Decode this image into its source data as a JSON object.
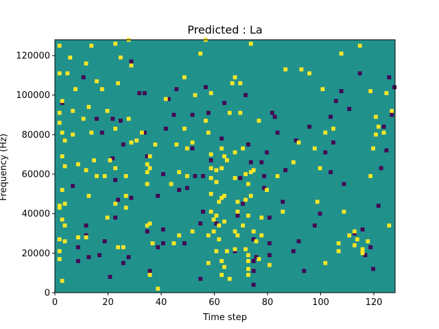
{
  "chart_data": {
    "type": "heatmap",
    "title": "Predicted : La",
    "xlabel": "Time step",
    "ylabel": "Frequency (Hz)",
    "xlim": [
      0,
      128
    ],
    "ylim": [
      0,
      128000
    ],
    "xticks": [
      0,
      20,
      40,
      60,
      80,
      100,
      120
    ],
    "yticks": [
      0,
      20000,
      40000,
      60000,
      80000,
      100000,
      120000
    ],
    "colormap": "viridis",
    "levels": {
      "low": 0,
      "mid": 1,
      "high": 2
    },
    "colors": {
      "low": "#440154",
      "mid": "#21918c",
      "high": "#fde725"
    },
    "background_level": 1,
    "cells_high": [
      [
        1,
        124000
      ],
      [
        1,
        110000
      ],
      [
        1,
        90000
      ],
      [
        1,
        85000
      ],
      [
        1,
        43000
      ],
      [
        1,
        42000
      ],
      [
        1,
        26000
      ],
      [
        1,
        20000
      ],
      [
        1,
        16000
      ],
      [
        2,
        96000
      ],
      [
        2,
        80000
      ],
      [
        2,
        68000
      ],
      [
        2,
        51000
      ],
      [
        2,
        36000
      ],
      [
        2,
        5000
      ],
      [
        3,
        76000
      ],
      [
        3,
        63000
      ],
      [
        3,
        44000
      ],
      [
        3,
        33000
      ],
      [
        3,
        25000
      ],
      [
        4,
        110000
      ],
      [
        5,
        118000
      ],
      [
        6,
        91000
      ],
      [
        6,
        79000
      ],
      [
        7,
        102000
      ],
      [
        8,
        64000
      ],
      [
        8,
        27000
      ],
      [
        10,
        87000
      ],
      [
        11,
        115000
      ],
      [
        11,
        61000
      ],
      [
        11,
        27000
      ],
      [
        12,
        93000
      ],
      [
        12,
        48000
      ],
      [
        13,
        124000
      ],
      [
        13,
        80000
      ],
      [
        14,
        66000
      ],
      [
        15,
        58000
      ],
      [
        15,
        106000
      ],
      [
        17,
        102000
      ],
      [
        18,
        58000
      ],
      [
        19,
        91000
      ],
      [
        19,
        37000
      ],
      [
        20,
        66000
      ],
      [
        22,
        125000
      ],
      [
        22,
        82000
      ],
      [
        22,
        62000
      ],
      [
        22,
        44000
      ],
      [
        23,
        105000
      ],
      [
        23,
        22000
      ],
      [
        24,
        118000
      ],
      [
        25,
        22000
      ],
      [
        26,
        58000
      ],
      [
        26,
        48000
      ],
      [
        26,
        42000
      ],
      [
        27,
        127000
      ],
      [
        27,
        87000
      ],
      [
        28,
        114000
      ],
      [
        28,
        75000
      ],
      [
        30,
        76000
      ],
      [
        32,
        80000
      ],
      [
        34,
        64000
      ],
      [
        34,
        60000
      ],
      [
        34,
        54000
      ],
      [
        34,
        33000
      ],
      [
        35,
        68000
      ],
      [
        35,
        62000
      ],
      [
        35,
        34000
      ],
      [
        35,
        8000
      ],
      [
        36,
        24000
      ],
      [
        37,
        74000
      ],
      [
        38,
        1000
      ],
      [
        41,
        97000
      ],
      [
        43,
        54000
      ],
      [
        44,
        24000
      ],
      [
        45,
        74000
      ],
      [
        46,
        60000
      ],
      [
        46,
        28000
      ],
      [
        48,
        108000
      ],
      [
        48,
        82000
      ],
      [
        49,
        58000
      ],
      [
        49,
        72000
      ],
      [
        51,
        75000
      ],
      [
        51,
        30000
      ],
      [
        52,
        99000
      ],
      [
        54,
        120000
      ],
      [
        56,
        127000
      ],
      [
        56,
        86000
      ],
      [
        57,
        14000
      ],
      [
        57,
        28000
      ],
      [
        57,
        80000
      ],
      [
        58,
        40000
      ],
      [
        58,
        49000
      ],
      [
        58,
        57000
      ],
      [
        58,
        62000
      ],
      [
        58,
        69000
      ],
      [
        58,
        100000
      ],
      [
        59,
        30000
      ],
      [
        59,
        36000
      ],
      [
        60,
        38000
      ],
      [
        60,
        55000
      ],
      [
        60,
        61000
      ],
      [
        60,
        20000
      ],
      [
        61,
        26000
      ],
      [
        61,
        33000
      ],
      [
        61,
        45000
      ],
      [
        62,
        8000
      ],
      [
        62,
        15000
      ],
      [
        62,
        47000
      ],
      [
        62,
        62000
      ],
      [
        62,
        72000
      ],
      [
        63,
        68000
      ],
      [
        63,
        48000
      ],
      [
        63,
        35000
      ],
      [
        63,
        12000
      ],
      [
        64,
        20000
      ],
      [
        64,
        66000
      ],
      [
        65,
        6000
      ],
      [
        65,
        90000
      ],
      [
        66,
        105000
      ],
      [
        67,
        108000
      ],
      [
        67,
        70000
      ],
      [
        67,
        57000
      ],
      [
        67,
        30000
      ],
      [
        67,
        21000
      ],
      [
        68,
        28000
      ],
      [
        68,
        45000
      ],
      [
        68,
        40000
      ],
      [
        69,
        105000
      ],
      [
        69,
        90000
      ],
      [
        70,
        33000
      ],
      [
        70,
        72000
      ],
      [
        71,
        59000
      ],
      [
        71,
        46000
      ],
      [
        71,
        21000
      ],
      [
        72,
        18000
      ],
      [
        72,
        15000
      ],
      [
        72,
        11000
      ],
      [
        72,
        8000
      ],
      [
        72,
        38000
      ],
      [
        72,
        54000
      ],
      [
        73,
        125000
      ],
      [
        73,
        48000
      ],
      [
        73,
        60000
      ],
      [
        74,
        30000
      ],
      [
        74,
        61000
      ],
      [
        75,
        25000
      ],
      [
        76,
        16000
      ],
      [
        76,
        86000
      ],
      [
        77,
        28000
      ],
      [
        77,
        37000
      ],
      [
        79,
        51000
      ],
      [
        80,
        13000
      ],
      [
        83,
        58000
      ],
      [
        85,
        40000
      ],
      [
        86,
        112000
      ],
      [
        89,
        65000
      ],
      [
        91,
        75000
      ],
      [
        92,
        112000
      ],
      [
        95,
        110000
      ],
      [
        97,
        72000
      ],
      [
        98,
        45000
      ],
      [
        99,
        62000
      ],
      [
        100,
        102000
      ],
      [
        101,
        80000
      ],
      [
        101,
        14000
      ],
      [
        104,
        82000
      ],
      [
        106,
        24000
      ],
      [
        106,
        20000
      ],
      [
        107,
        120000
      ],
      [
        108,
        40000
      ],
      [
        110,
        28000
      ],
      [
        112,
        30000
      ],
      [
        112,
        23000
      ],
      [
        113,
        26000
      ],
      [
        114,
        124000
      ],
      [
        115,
        19000
      ],
      [
        115,
        21000
      ],
      [
        117,
        25000
      ],
      [
        118,
        101000
      ],
      [
        118,
        58000
      ],
      [
        119,
        72000
      ],
      [
        120,
        88000
      ],
      [
        120,
        79000
      ],
      [
        121,
        83000
      ],
      [
        123,
        80000
      ],
      [
        124,
        100000
      ],
      [
        125,
        33000
      ],
      [
        126,
        91000
      ]
    ],
    "cells_low": [
      [
        2,
        95000
      ],
      [
        3,
        76000
      ],
      [
        6,
        53000
      ],
      [
        8,
        22000
      ],
      [
        8,
        15000
      ],
      [
        10,
        108000
      ],
      [
        11,
        33000
      ],
      [
        11,
        28000
      ],
      [
        12,
        17000
      ],
      [
        15,
        87000
      ],
      [
        16,
        18000
      ],
      [
        17,
        80000
      ],
      [
        18,
        25000
      ],
      [
        20,
        7000
      ],
      [
        21,
        87000
      ],
      [
        21,
        67000
      ],
      [
        22,
        56000
      ],
      [
        22,
        37000
      ],
      [
        23,
        46000
      ],
      [
        24,
        118000
      ],
      [
        24,
        86000
      ],
      [
        25,
        74000
      ],
      [
        25,
        14000
      ],
      [
        27,
        17000
      ],
      [
        28,
        116000
      ],
      [
        28,
        47000
      ],
      [
        31,
        100000
      ],
      [
        33,
        100000
      ],
      [
        33,
        80000
      ],
      [
        34,
        68000
      ],
      [
        34,
        30000
      ],
      [
        35,
        10000
      ],
      [
        38,
        48000
      ],
      [
        38,
        22000
      ],
      [
        40,
        59000
      ],
      [
        40,
        31000
      ],
      [
        40,
        24000
      ],
      [
        41,
        82000
      ],
      [
        42,
        97000
      ],
      [
        44,
        89000
      ],
      [
        45,
        102000
      ],
      [
        46,
        51000
      ],
      [
        48,
        24000
      ],
      [
        49,
        52000
      ],
      [
        51,
        72000
      ],
      [
        51,
        89000
      ],
      [
        52,
        58000
      ],
      [
        54,
        6000
      ],
      [
        54,
        34000
      ],
      [
        55,
        40000
      ],
      [
        55,
        58000
      ],
      [
        56,
        103000
      ],
      [
        57,
        90000
      ],
      [
        58,
        66000
      ],
      [
        60,
        34000
      ],
      [
        62,
        77000
      ],
      [
        63,
        95000
      ],
      [
        67,
        20000
      ],
      [
        68,
        38000
      ],
      [
        69,
        57000
      ],
      [
        70,
        44000
      ],
      [
        71,
        99000
      ],
      [
        72,
        74000
      ],
      [
        73,
        65000
      ],
      [
        74,
        26000
      ],
      [
        74,
        15000
      ],
      [
        74,
        10000
      ],
      [
        74,
        3000
      ],
      [
        75,
        17000
      ],
      [
        77,
        65000
      ],
      [
        78,
        58000
      ],
      [
        78,
        52000
      ],
      [
        79,
        70000
      ],
      [
        80,
        24000
      ],
      [
        80,
        18000
      ],
      [
        80,
        37000
      ],
      [
        81,
        90000
      ],
      [
        82,
        88000
      ],
      [
        83,
        80000
      ],
      [
        85,
        45000
      ],
      [
        86,
        61000
      ],
      [
        89,
        20000
      ],
      [
        90,
        76000
      ],
      [
        91,
        25000
      ],
      [
        93,
        10000
      ],
      [
        95,
        83000
      ],
      [
        97,
        33000
      ],
      [
        99,
        39000
      ],
      [
        101,
        70000
      ],
      [
        103,
        60000
      ],
      [
        103,
        88000
      ],
      [
        104,
        75000
      ],
      [
        105,
        96000
      ],
      [
        107,
        101000
      ],
      [
        108,
        54000
      ],
      [
        110,
        92000
      ],
      [
        112,
        29000
      ],
      [
        114,
        110000
      ],
      [
        115,
        31000
      ],
      [
        116,
        18000
      ],
      [
        118,
        101000
      ],
      [
        118,
        22000
      ],
      [
        119,
        11000
      ],
      [
        121,
        43000
      ],
      [
        122,
        62000
      ],
      [
        123,
        83000
      ],
      [
        124,
        71000
      ],
      [
        125,
        108000
      ],
      [
        126,
        89000
      ],
      [
        127,
        103000
      ]
    ]
  }
}
